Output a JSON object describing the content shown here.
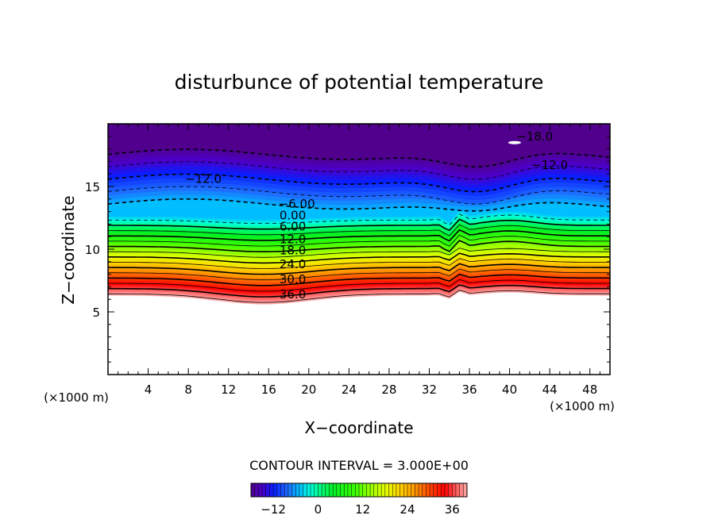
{
  "chart_data": {
    "type": "heatmap",
    "title": "disturbunce of potential temperature",
    "xlabel": "X−coordinate",
    "ylabel": "Z−coordinate",
    "x_unit": "(×1000 m)",
    "y_unit": "(×1000 m)",
    "xlim": [
      0,
      50
    ],
    "ylim": [
      0,
      20
    ],
    "x_ticks": [
      4,
      8,
      12,
      16,
      20,
      24,
      28,
      32,
      36,
      40,
      44,
      48
    ],
    "x_tick_labels": [
      "4",
      "8",
      "12",
      "16",
      "20",
      "24",
      "28",
      "32",
      "36",
      "40",
      "44",
      "48"
    ],
    "y_ticks": [
      5,
      10,
      15
    ],
    "y_tick_labels": [
      "5",
      "10",
      "15"
    ],
    "contour_interval": 3.0,
    "contour_interval_text": "CONTOUR INTERVAL = 3.000E+00",
    "color_range": [
      -18,
      40
    ],
    "colorbar_ticks": [
      -12,
      0,
      12,
      24,
      36
    ],
    "colorbar_tick_labels": [
      "−12",
      "0",
      "12",
      "24",
      "36"
    ],
    "contour_labels": [
      {
        "text": "−18.0",
        "x": 42.5,
        "z": 19.0
      },
      {
        "text": "−12.0",
        "x": 44.0,
        "z": 16.7
      },
      {
        "text": "−12.0",
        "x": 9.5,
        "z": 15.6
      },
      {
        "text": "−6.00",
        "x": 18.8,
        "z": 13.6
      },
      {
        "text": "0.00",
        "x": 18.4,
        "z": 12.7
      },
      {
        "text": "6.00",
        "x": 18.4,
        "z": 11.8
      },
      {
        "text": "12.0",
        "x": 18.4,
        "z": 10.8
      },
      {
        "text": "18.0",
        "x": 18.4,
        "z": 9.9
      },
      {
        "text": "24.0",
        "x": 18.4,
        "z": 8.8
      },
      {
        "text": "30.0",
        "x": 18.4,
        "z": 7.6
      },
      {
        "text": "36.0",
        "x": 18.4,
        "z": 6.4
      }
    ],
    "field_description_points": [
      {
        "x": 0,
        "z": 6.3,
        "value": 40
      },
      {
        "x": 15,
        "z": 5.6,
        "value": 40
      },
      {
        "x": 36,
        "z": 6.2,
        "value": 40
      },
      {
        "x": 50,
        "z": 6.3,
        "value": 40
      },
      {
        "x": 25,
        "z": 13.2,
        "value": 0
      },
      {
        "x": 25,
        "z": 14.0,
        "value": -6
      },
      {
        "x": 25,
        "z": 16.0,
        "value": -12
      },
      {
        "x": 40,
        "z": 18.5,
        "value": -18
      },
      {
        "x": 25,
        "z": 19.5,
        "value": -16
      }
    ],
    "grid": false
  }
}
